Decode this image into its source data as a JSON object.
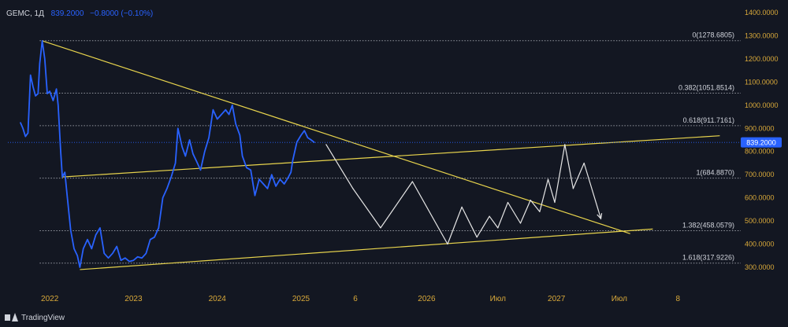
{
  "legend": {
    "symbol": "GEMC, 1Д",
    "price": "839.2000",
    "change": "−0.8000 (−0.10%)"
  },
  "brand": {
    "name": "TradingView",
    "icon": "tradingview-logo-icon"
  },
  "colors": {
    "background": "#131722",
    "price_line": "#2962ff",
    "trendline": "#e8d44d",
    "projection": "#e6e6e6",
    "axis_text": "#b2b5be",
    "axis_label_accent": "#d9a93a",
    "fib_line": "#9598a1",
    "current_price_badge": "#2962ff"
  },
  "chart_data": {
    "type": "line",
    "title": "",
    "xlabel": "",
    "ylabel": "",
    "ylim": [
      250,
      1400
    ],
    "x_ticks": [
      "2022",
      "2023",
      "2024",
      "2025",
      "6",
      "2026",
      "Июл",
      "2027",
      "Июл",
      "8"
    ],
    "y_ticks": [
      "300.0000",
      "400.0000",
      "500.0000",
      "600.0000",
      "700.0000",
      "800.0000",
      "900.0000",
      "1000.0000",
      "1100.0000",
      "1200.0000",
      "1300.0000",
      "1400.0000"
    ],
    "current_price": {
      "label": "839.2000",
      "value": 839.2
    },
    "fib_levels": [
      {
        "label": "0(1278.6805)",
        "value": 1278.6805
      },
      {
        "label": "0.382(1051.8514)",
        "value": 1051.8514
      },
      {
        "label": "0.618(911.7161)",
        "value": 911.7161
      },
      {
        "label": "1(684.8870)",
        "value": 684.887
      },
      {
        "label": "1.382(458.0579)",
        "value": 458.0579
      },
      {
        "label": "1.618(317.9226)",
        "value": 317.9226
      }
    ],
    "series": [
      {
        "kind": "price",
        "points": [
          [
            2021.65,
            925
          ],
          [
            2021.68,
            900
          ],
          [
            2021.71,
            865
          ],
          [
            2021.74,
            880
          ],
          [
            2021.77,
            1130
          ],
          [
            2021.8,
            1080
          ],
          [
            2021.83,
            1040
          ],
          [
            2021.86,
            1050
          ],
          [
            2021.88,
            1180
          ],
          [
            2021.91,
            1278
          ],
          [
            2021.94,
            1200
          ],
          [
            2021.97,
            1050
          ],
          [
            2022.0,
            1060
          ],
          [
            2022.04,
            1020
          ],
          [
            2022.08,
            1070
          ],
          [
            2022.1,
            1000
          ],
          [
            2022.13,
            800
          ],
          [
            2022.15,
            690
          ],
          [
            2022.18,
            710
          ],
          [
            2022.21,
            600
          ],
          [
            2022.25,
            460
          ],
          [
            2022.29,
            380
          ],
          [
            2022.33,
            350
          ],
          [
            2022.36,
            300
          ],
          [
            2022.4,
            380
          ],
          [
            2022.45,
            420
          ],
          [
            2022.5,
            380
          ],
          [
            2022.55,
            440
          ],
          [
            2022.6,
            470
          ],
          [
            2022.65,
            360
          ],
          [
            2022.7,
            340
          ],
          [
            2022.75,
            360
          ],
          [
            2022.8,
            390
          ],
          [
            2022.85,
            330
          ],
          [
            2022.9,
            340
          ],
          [
            2022.95,
            325
          ],
          [
            2023.0,
            330
          ],
          [
            2023.05,
            345
          ],
          [
            2023.1,
            340
          ],
          [
            2023.15,
            360
          ],
          [
            2023.2,
            420
          ],
          [
            2023.25,
            430
          ],
          [
            2023.3,
            470
          ],
          [
            2023.35,
            600
          ],
          [
            2023.4,
            640
          ],
          [
            2023.45,
            690
          ],
          [
            2023.5,
            750
          ],
          [
            2023.53,
            900
          ],
          [
            2023.58,
            820
          ],
          [
            2023.62,
            780
          ],
          [
            2023.67,
            850
          ],
          [
            2023.71,
            790
          ],
          [
            2023.75,
            760
          ],
          [
            2023.8,
            720
          ],
          [
            2023.85,
            800
          ],
          [
            2023.9,
            860
          ],
          [
            2023.95,
            980
          ],
          [
            2024.0,
            940
          ],
          [
            2024.05,
            960
          ],
          [
            2024.1,
            980
          ],
          [
            2024.14,
            960
          ],
          [
            2024.18,
            1000
          ],
          [
            2024.22,
            920
          ],
          [
            2024.27,
            870
          ],
          [
            2024.3,
            780
          ],
          [
            2024.35,
            730
          ],
          [
            2024.4,
            720
          ],
          [
            2024.45,
            610
          ],
          [
            2024.5,
            680
          ],
          [
            2024.55,
            660
          ],
          [
            2024.6,
            640
          ],
          [
            2024.65,
            700
          ],
          [
            2024.7,
            650
          ],
          [
            2024.75,
            680
          ],
          [
            2024.8,
            660
          ],
          [
            2024.85,
            690
          ],
          [
            2024.88,
            710
          ],
          [
            2024.9,
            760
          ],
          [
            2024.95,
            840
          ],
          [
            2025.0,
            870
          ],
          [
            2025.04,
            890
          ],
          [
            2025.08,
            860
          ],
          [
            2025.12,
            850
          ],
          [
            2025.16,
            839
          ]
        ]
      },
      {
        "kind": "projection",
        "points": [
          [
            2025.3,
            830
          ],
          [
            2025.62,
            640
          ],
          [
            2025.95,
            470
          ],
          [
            2026.33,
            670
          ],
          [
            2026.75,
            400
          ],
          [
            2026.92,
            560
          ],
          [
            2027.1,
            430
          ],
          [
            2027.25,
            520
          ],
          [
            2027.35,
            470
          ],
          [
            2027.47,
            580
          ],
          [
            2027.62,
            490
          ],
          [
            2027.74,
            590
          ],
          [
            2027.85,
            540
          ],
          [
            2027.95,
            680
          ],
          [
            2028.03,
            580
          ],
          [
            2028.15,
            830
          ],
          [
            2028.25,
            640
          ],
          [
            2028.38,
            750
          ],
          [
            2028.58,
            510
          ]
        ]
      }
    ],
    "trendlines": [
      {
        "name": "upper-descending",
        "from": [
          2021.91,
          1278
        ],
        "to": [
          2028.93,
          445
        ]
      },
      {
        "name": "mid-ascending",
        "from": [
          2022.15,
          690
        ],
        "to": [
          2030.0,
          868
        ]
      },
      {
        "name": "lower-ascending",
        "from": [
          2022.36,
          290
        ],
        "to": [
          2029.2,
          465
        ]
      }
    ]
  }
}
